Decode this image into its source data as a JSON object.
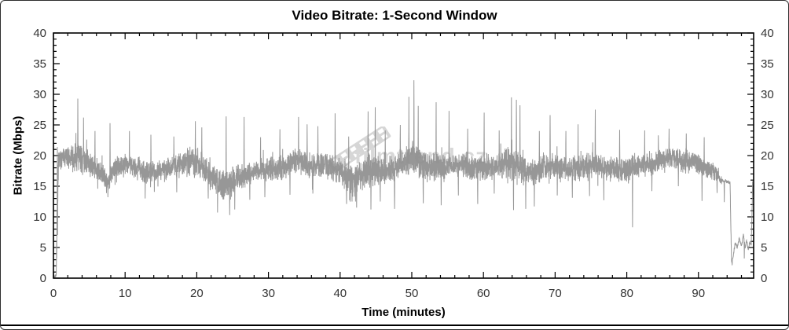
{
  "colors": {
    "background": "#ffffff",
    "axis": "#000000",
    "trace": "#8e8e8e",
    "tick_label": "#333333",
    "title": "#000000",
    "watermark": "#d8d8d8",
    "bottom_rule": "#000000",
    "border": "#2e2e2e"
  },
  "watermark": {
    "text": "filmtrend.cz",
    "icon": "film-strip-icon"
  },
  "chart_data": {
    "type": "line",
    "title": "Video Bitrate: 1-Second Window",
    "xlabel": "Time (minutes)",
    "ylabel": "Bitrate (Mbps)",
    "xlim": [
      0,
      97.7
    ],
    "ylim": [
      0,
      40
    ],
    "x_major_ticks": [
      0,
      10,
      20,
      30,
      40,
      50,
      60,
      70,
      80,
      90
    ],
    "x_minor_step": 2,
    "y_major_ticks": [
      0,
      5,
      10,
      15,
      20,
      25,
      30,
      35,
      40
    ],
    "y_minor_step": 1,
    "grid": false,
    "ticks_on_all_sides": true,
    "sample_interval": "1 second",
    "series": [
      {
        "name": "video-bitrate",
        "color": "#8e8e8e",
        "keypoints": [
          [
            0,
            0.3,
            0.2
          ],
          [
            0.38,
            0.4,
            0.3
          ],
          [
            0.55,
            12,
            9
          ],
          [
            0.75,
            19.5,
            2.0
          ],
          [
            2,
            19.5,
            2.2
          ],
          [
            3.2,
            19.8,
            3.2
          ],
          [
            5,
            18.6,
            2.2
          ],
          [
            6.5,
            17.5,
            2.0
          ],
          [
            7.5,
            15.6,
            1.8
          ],
          [
            8.5,
            17.5,
            2.0
          ],
          [
            9.5,
            18.8,
            2.2
          ],
          [
            11,
            18.4,
            2.0
          ],
          [
            13,
            17.1,
            2.2
          ],
          [
            15,
            17.6,
            2.0
          ],
          [
            17,
            18.4,
            2.2
          ],
          [
            19.5,
            19.0,
            2.8
          ],
          [
            21,
            17.9,
            2.5
          ],
          [
            23,
            15.6,
            2.6
          ],
          [
            24.5,
            15.1,
            3.0
          ],
          [
            26,
            16.6,
            2.5
          ],
          [
            28,
            17.4,
            2.0
          ],
          [
            30,
            17.6,
            2.2
          ],
          [
            32,
            18.1,
            2.4
          ],
          [
            34,
            19.4,
            2.4
          ],
          [
            36,
            18.1,
            2.2
          ],
          [
            38,
            18.6,
            2.4
          ],
          [
            40,
            17.4,
            2.6
          ],
          [
            42,
            16.1,
            2.8
          ],
          [
            44,
            17.6,
            3.0
          ],
          [
            46,
            17.4,
            2.6
          ],
          [
            48,
            18.1,
            2.4
          ],
          [
            50,
            19.9,
            3.1
          ],
          [
            52,
            18.1,
            2.6
          ],
          [
            54,
            18.0,
            2.8
          ],
          [
            56,
            18.6,
            2.2
          ],
          [
            58,
            18.1,
            2.2
          ],
          [
            60,
            18.0,
            2.6
          ],
          [
            62,
            18.4,
            2.2
          ],
          [
            64,
            18.5,
            3.6
          ],
          [
            65.5,
            17.6,
            3.0
          ],
          [
            67,
            17.1,
            2.4
          ],
          [
            69,
            18.4,
            2.4
          ],
          [
            71,
            18.1,
            2.2
          ],
          [
            73,
            18.0,
            2.4
          ],
          [
            75.5,
            18.4,
            2.6
          ],
          [
            77.5,
            17.9,
            2.2
          ],
          [
            80,
            17.6,
            2.4
          ],
          [
            82,
            18.4,
            2.2
          ],
          [
            84,
            19.0,
            2.2
          ],
          [
            86,
            19.6,
            2.0
          ],
          [
            88,
            19.1,
            2.2
          ],
          [
            90,
            18.6,
            2.0
          ],
          [
            92,
            17.6,
            1.8
          ],
          [
            93.2,
            15.9,
            0.7
          ],
          [
            94.4,
            15.6,
            0.5
          ],
          [
            94.62,
            2.6,
            0.4
          ],
          [
            94.85,
            3.6,
            0.5
          ],
          [
            95.1,
            5.8,
            0.6
          ],
          [
            95.4,
            5.0,
            0.6
          ],
          [
            95.7,
            6.4,
            0.7
          ],
          [
            96.0,
            5.2,
            0.6
          ],
          [
            96.25,
            7.2,
            0.8
          ],
          [
            96.5,
            5.1,
            0.6
          ],
          [
            96.75,
            6.1,
            0.6
          ],
          [
            96.95,
            4.6,
            0.5
          ],
          [
            97.15,
            6.0,
            0.6
          ],
          [
            97.35,
            5.6,
            0.8
          ],
          [
            97.55,
            15.2,
            0.6
          ],
          [
            97.7,
            12.5,
            0.5
          ]
        ],
        "peaks": [
          [
            0.55,
            21.4
          ],
          [
            3.4,
            29.3
          ],
          [
            4.2,
            26.2
          ],
          [
            5.8,
            24.0
          ],
          [
            7.9,
            25.3
          ],
          [
            10.6,
            24.0
          ],
          [
            13.6,
            23.4
          ],
          [
            16.8,
            23.1
          ],
          [
            19.8,
            25.6
          ],
          [
            20.7,
            24.6
          ],
          [
            24.1,
            26.4
          ],
          [
            26.6,
            26.3
          ],
          [
            28.9,
            23.0
          ],
          [
            31.6,
            24.3
          ],
          [
            34.2,
            26.3
          ],
          [
            35.4,
            25.1
          ],
          [
            36.9,
            24.8
          ],
          [
            39.3,
            26.9
          ],
          [
            41.2,
            23.1
          ],
          [
            43.9,
            27.2
          ],
          [
            44.9,
            27.9
          ],
          [
            46.3,
            24.1
          ],
          [
            48.4,
            25.0
          ],
          [
            49.6,
            29.6
          ],
          [
            50.3,
            32.3
          ],
          [
            50.9,
            28.1
          ],
          [
            53.4,
            28.7
          ],
          [
            55.2,
            27.3
          ],
          [
            57.8,
            24.4
          ],
          [
            60.1,
            27.0
          ],
          [
            62.2,
            24.1
          ],
          [
            63.9,
            29.5
          ],
          [
            64.6,
            29.1
          ],
          [
            65.1,
            28.2
          ],
          [
            67.8,
            24.0
          ],
          [
            69.3,
            26.6
          ],
          [
            71.5,
            24.0
          ],
          [
            73.2,
            25.1
          ],
          [
            75.6,
            27.5
          ],
          [
            79.0,
            24.2
          ],
          [
            82.5,
            24.1
          ],
          [
            84.4,
            23.3
          ],
          [
            85.9,
            24.4
          ],
          [
            88.3,
            23.6
          ],
          [
            90.8,
            23.0
          ],
          [
            97.55,
            15.8
          ]
        ],
        "dips": [
          [
            0.2,
            0.2
          ],
          [
            7.6,
            13.2
          ],
          [
            12.8,
            13.0
          ],
          [
            17.2,
            14.0
          ],
          [
            21.6,
            13.0
          ],
          [
            22.9,
            10.7
          ],
          [
            24.6,
            10.3
          ],
          [
            25.3,
            11.2
          ],
          [
            27.4,
            12.8
          ],
          [
            29.5,
            13.2
          ],
          [
            33.0,
            13.6
          ],
          [
            36.2,
            13.8
          ],
          [
            40.9,
            12.1
          ],
          [
            42.3,
            11.5
          ],
          [
            44.3,
            11.2
          ],
          [
            45.6,
            12.5
          ],
          [
            47.6,
            11.3
          ],
          [
            51.6,
            12.2
          ],
          [
            54.1,
            11.9
          ],
          [
            56.5,
            13.5
          ],
          [
            59.2,
            12.1
          ],
          [
            61.5,
            13.8
          ],
          [
            64.2,
            11.1
          ],
          [
            65.9,
            11.3
          ],
          [
            67.1,
            11.7
          ],
          [
            70.3,
            13.5
          ],
          [
            72.4,
            13.1
          ],
          [
            74.8,
            13.4
          ],
          [
            76.8,
            12.7
          ],
          [
            80.8,
            8.3
          ],
          [
            83.5,
            14.2
          ],
          [
            87.2,
            15.0
          ],
          [
            90.5,
            12.6
          ],
          [
            92.6,
            13.9
          ],
          [
            93.6,
            12.4
          ],
          [
            94.7,
            2.1
          ],
          [
            96.4,
            3.2
          ]
        ]
      }
    ]
  }
}
